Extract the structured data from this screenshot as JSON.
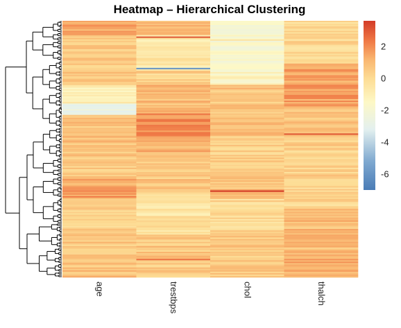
{
  "chart_data": {
    "type": "heatmap",
    "title": "Heatmap – Hierarchical Clustering",
    "columns": [
      "age",
      "trestbps",
      "chol",
      "thalch"
    ],
    "row_count": 180,
    "color_scale": {
      "min": -7,
      "max": 3.6,
      "ticks": [
        2,
        0,
        -2,
        -4,
        -6
      ],
      "tick_labels": [
        "2",
        "0",
        "-2",
        "-4",
        "-6"
      ],
      "stops": [
        {
          "value": -7,
          "color": "#4a7cb6"
        },
        {
          "value": -5.2,
          "color": "#7fa9d0"
        },
        {
          "value": -3.2,
          "color": "#e3f0ef"
        },
        {
          "value": -1.5,
          "color": "#fdf8c6"
        },
        {
          "value": 0,
          "color": "#fddc94"
        },
        {
          "value": 1.2,
          "color": "#f9b56f"
        },
        {
          "value": 2.3,
          "color": "#f07b47"
        },
        {
          "value": 3.6,
          "color": "#d33b27"
        }
      ]
    },
    "dendrogram": "rows",
    "column_segments": [
      {
        "column": "age",
        "segments": [
          {
            "rows": [
              0,
              10
            ],
            "value": 1.3
          },
          {
            "rows": [
              10,
              45
            ],
            "value": 0.5
          },
          {
            "rows": [
              45,
              58
            ],
            "value": -1.0
          },
          {
            "rows": [
              58,
              66
            ],
            "value": -2.5
          },
          {
            "rows": [
              66,
              90
            ],
            "value": 0.8
          },
          {
            "rows": [
              90,
              110
            ],
            "value": 0.5
          },
          {
            "rows": [
              110,
              125
            ],
            "value": 1.4
          },
          {
            "rows": [
              125,
              150
            ],
            "value": 0.3
          },
          {
            "rows": [
              150,
              180
            ],
            "value": 0.7
          }
        ]
      },
      {
        "column": "trestbps",
        "segments": [
          {
            "rows": [
              0,
              10
            ],
            "value": 1.0
          },
          {
            "rows": [
              10,
              35
            ],
            "value": -0.6
          },
          {
            "rows": [
              35,
              45
            ],
            "value": 0.2
          },
          {
            "rows": [
              45,
              65
            ],
            "value": 0.9
          },
          {
            "rows": [
              65,
              85
            ],
            "value": 1.9
          },
          {
            "rows": [
              85,
              95
            ],
            "value": 1.2
          },
          {
            "rows": [
              95,
              120
            ],
            "value": 0.6
          },
          {
            "rows": [
              120,
              150
            ],
            "value": -0.4
          },
          {
            "rows": [
              150,
              180
            ],
            "value": 0.6
          }
        ]
      },
      {
        "column": "chol",
        "segments": [
          {
            "rows": [
              0,
              30
            ],
            "value": -1.7
          },
          {
            "rows": [
              30,
              45
            ],
            "value": -1.4
          },
          {
            "rows": [
              45,
              80
            ],
            "value": 0.7
          },
          {
            "rows": [
              80,
              110
            ],
            "value": 0.4
          },
          {
            "rows": [
              110,
              125
            ],
            "value": 0.8
          },
          {
            "rows": [
              125,
              150
            ],
            "value": 0.1
          },
          {
            "rows": [
              150,
              180
            ],
            "value": 0.6
          }
        ]
      },
      {
        "column": "thalch",
        "segments": [
          {
            "rows": [
              0,
              30
            ],
            "value": 0.0
          },
          {
            "rows": [
              30,
              60
            ],
            "value": 1.5
          },
          {
            "rows": [
              60,
              80
            ],
            "value": 0.6
          },
          {
            "rows": [
              80,
              110
            ],
            "value": 0.3
          },
          {
            "rows": [
              110,
              130
            ],
            "value": 0.1
          },
          {
            "rows": [
              130,
              160
            ],
            "value": 0.9
          },
          {
            "rows": [
              160,
              180
            ],
            "value": 1.4
          }
        ]
      }
    ],
    "highlight_rows": [
      {
        "column": "trestbps",
        "row": 11,
        "value": 3.0
      },
      {
        "column": "trestbps",
        "row": 33,
        "value": -6.0
      },
      {
        "column": "chol",
        "row": 13,
        "value": -0.4
      },
      {
        "column": "chol",
        "row": 119,
        "value": 3.6
      },
      {
        "column": "thalch",
        "row": 79,
        "value": 3.0
      },
      {
        "column": "age",
        "row": 123,
        "value": 2.3
      },
      {
        "column": "trestbps",
        "row": 167,
        "value": 2.5
      }
    ]
  }
}
